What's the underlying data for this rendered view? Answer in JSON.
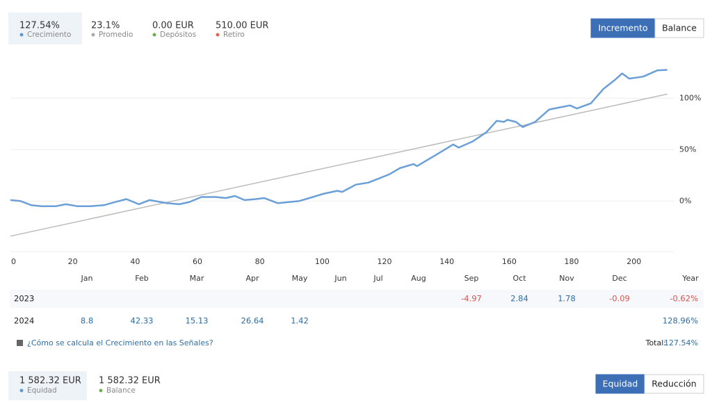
{
  "header": {
    "stats": [
      {
        "value": "127.54%",
        "label": "Crecimiento",
        "color": "#5b9bd5"
      },
      {
        "value": "23.1%",
        "label": "Promedio",
        "color": "#aaaaaa"
      },
      {
        "value": "0.00 EUR",
        "label": "Depósitos",
        "color": "#6ab04c"
      },
      {
        "value": "510.00 EUR",
        "label": "Retiro",
        "color": "#e0664f"
      }
    ],
    "tabs": [
      "Incremento",
      "Balance"
    ]
  },
  "chart_data": {
    "type": "line",
    "color": "#6a9fd8",
    "x": [
      0,
      3.3,
      6.7,
      10,
      14.5,
      17.8,
      21.6,
      25.6,
      30,
      33.4,
      37.2,
      41.2,
      44.6,
      50.2,
      54.2,
      57.3,
      61.3,
      65.8,
      69.1,
      72,
      75.1,
      78.7,
      81.4,
      85.8,
      92.5,
      95.9,
      100.3,
      104.8,
      106.4,
      110.8,
      114.8,
      118.2,
      121.5,
      124.9,
      129.3,
      130.4,
      134.9,
      138.2,
      142,
      143.8,
      148.3,
      152.7,
      156,
      158.3,
      159.4,
      162.1,
      164.3,
      168.3,
      172.8,
      176.1,
      179.5,
      181.7,
      186.2,
      190.2,
      194,
      196.2,
      198.5,
      203,
      207.5,
      210.7
    ],
    "values": [
      1,
      0,
      -4,
      -5,
      -5,
      -3,
      -5,
      -5,
      -4,
      -1,
      2,
      -3,
      1,
      -2,
      -3,
      -1,
      4,
      4,
      3,
      5,
      1,
      2,
      3,
      -2,
      0,
      3,
      7,
      10,
      9,
      16,
      18,
      22,
      26,
      32,
      36,
      34,
      42,
      48,
      55,
      52,
      58,
      67,
      78,
      77,
      79,
      77,
      72,
      77,
      89,
      91,
      93,
      90,
      95,
      109,
      118,
      124,
      119,
      121,
      127,
      127.54
    ],
    "trend": {
      "x": [
        0,
        210.7
      ],
      "values": [
        -34,
        104
      ],
      "color": "#bbbbbb"
    },
    "xlim": [
      0,
      213
    ],
    "ylim": [
      -49,
      138
    ],
    "xticks": [
      0,
      20,
      40,
      60,
      80,
      100,
      120,
      140,
      160,
      180,
      200
    ],
    "yticks": [
      {
        "value": 0,
        "label": "0%"
      },
      {
        "value": 50,
        "label": "50%"
      },
      {
        "value": 100,
        "label": "100%"
      }
    ],
    "grid": true
  },
  "table": {
    "columns": [
      "Jan",
      "Feb",
      "Mar",
      "Apr",
      "May",
      "Jun",
      "Jul",
      "Aug",
      "Sep",
      "Oct",
      "Nov",
      "Dec",
      "Year"
    ],
    "rows": [
      {
        "year": "2023",
        "cells": [
          null,
          null,
          null,
          null,
          null,
          null,
          null,
          null,
          "-4.97",
          "2.84",
          "1.78",
          "-0.09",
          "-0.62%"
        ]
      },
      {
        "year": "2024",
        "cells": [
          "8.8",
          "42.33",
          "15.13",
          "26.64",
          "1.42",
          null,
          null,
          null,
          null,
          null,
          null,
          null,
          "128.96%"
        ]
      }
    ]
  },
  "footer": {
    "link": "¿Cómo se calcula el Crecimiento en las Señales?",
    "total_label": "Total:",
    "total_value": "127.54%"
  },
  "bottom": {
    "stats": [
      {
        "value": "1 582.32 EUR",
        "label": "Equidad",
        "color": "#5b9bd5"
      },
      {
        "value": "1 582.32 EUR",
        "label": "Balance",
        "color": "#6ab04c"
      }
    ],
    "tabs": [
      "Equidad",
      "Reducción"
    ]
  }
}
